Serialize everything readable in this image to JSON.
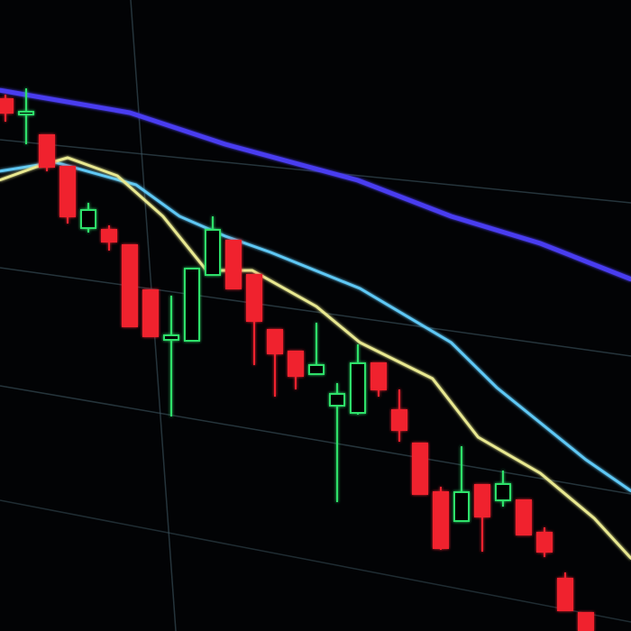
{
  "chart_data": {
    "type": "candlestick",
    "title": "",
    "xlabel": "",
    "ylabel": "",
    "grid": true,
    "legend": "none",
    "colors": {
      "up": "#2fe06a",
      "down": "#f0202e",
      "background": "#020305",
      "grid": "#5a7a8a"
    },
    "candles": [
      {
        "open": 59.0,
        "close": 57.5,
        "high": 59.5,
        "low": 56.5
      },
      {
        "open": 57.3,
        "close": 57.6,
        "high": 60.2,
        "low": 54.0
      },
      {
        "open": 55.0,
        "close": 51.5,
        "high": 55.0,
        "low": 51.0
      },
      {
        "open": 51.5,
        "close": 46.0,
        "high": 51.5,
        "low": 45.2
      },
      {
        "open": 44.7,
        "close": 46.7,
        "high": 47.5,
        "low": 44.2
      },
      {
        "open": 44.5,
        "close": 43.2,
        "high": 45.0,
        "low": 42.2
      },
      {
        "open": 42.8,
        "close": 33.8,
        "high": 42.8,
        "low": 33.8
      },
      {
        "open": 37.8,
        "close": 32.7,
        "high": 37.8,
        "low": 32.7
      },
      {
        "open": 32.3,
        "close": 32.8,
        "high": 37.2,
        "low": 23.8
      },
      {
        "open": 32.2,
        "close": 40.2,
        "high": 40.2,
        "low": 32.2
      },
      {
        "open": 39.5,
        "close": 44.5,
        "high": 46.0,
        "low": 39.5
      },
      {
        "open": 43.3,
        "close": 38.0,
        "high": 43.3,
        "low": 38.0
      },
      {
        "open": 39.5,
        "close": 34.4,
        "high": 39.5,
        "low": 29.5
      },
      {
        "open": 33.4,
        "close": 30.8,
        "high": 33.4,
        "low": 26.0
      },
      {
        "open": 31.0,
        "close": 28.3,
        "high": 31.0,
        "low": 26.8
      },
      {
        "open": 28.5,
        "close": 29.5,
        "high": 34.2,
        "low": 28.5
      },
      {
        "open": 25.0,
        "close": 26.3,
        "high": 27.5,
        "low": 14.3
      },
      {
        "open": 24.2,
        "close": 29.7,
        "high": 31.8,
        "low": 24.0
      },
      {
        "open": 29.7,
        "close": 26.8,
        "high": 29.7,
        "low": 26.0
      },
      {
        "open": 24.5,
        "close": 22.3,
        "high": 26.8,
        "low": 21.0
      },
      {
        "open": 20.8,
        "close": 15.2,
        "high": 20.8,
        "low": 15.2
      },
      {
        "open": 15.4,
        "close": 9.2,
        "high": 16.0,
        "low": 9.0
      },
      {
        "open": 12.2,
        "close": 15.4,
        "high": 20.5,
        "low": 12.2
      },
      {
        "open": 16.2,
        "close": 12.7,
        "high": 16.2,
        "low": 8.8
      },
      {
        "open": 14.5,
        "close": 16.3,
        "high": 17.8,
        "low": 13.8
      },
      {
        "open": 14.5,
        "close": 10.7,
        "high": 14.5,
        "low": 10.7
      },
      {
        "open": 10.9,
        "close": 8.8,
        "high": 11.5,
        "low": 8.2
      },
      {
        "open": 5.8,
        "close": 2.3,
        "high": 6.5,
        "low": 2.3
      },
      {
        "open": 2.0,
        "close": 0.0,
        "high": 2.0,
        "low": 0.0
      }
    ],
    "moving_averages": [
      {
        "color": "#4a3cf0",
        "points": [
          [
            -0.3,
            60
          ],
          [
            6,
            57.5
          ],
          [
            10.6,
            54
          ],
          [
            17,
            50
          ],
          [
            21.5,
            46
          ],
          [
            25.8,
            43
          ],
          [
            30.2,
            39
          ]
        ]
      },
      {
        "color": "#5ec8f5",
        "points": [
          [
            -0.3,
            51
          ],
          [
            2.4,
            52
          ],
          [
            6.3,
            49.5
          ],
          [
            8.4,
            46
          ],
          [
            10.6,
            43.8
          ],
          [
            12.8,
            42
          ],
          [
            17.1,
            38
          ],
          [
            21.5,
            32
          ],
          [
            23.7,
            27
          ],
          [
            28,
            19
          ],
          [
            30.2,
            15.5
          ]
        ]
      },
      {
        "color": "#e8e890",
        "points": [
          [
            -0.3,
            50
          ],
          [
            1.5,
            51.5
          ],
          [
            3,
            52.5
          ],
          [
            5.4,
            50.5
          ],
          [
            7.6,
            46
          ],
          [
            9.7,
            40
          ],
          [
            11.9,
            40
          ],
          [
            15,
            36
          ],
          [
            17.1,
            32
          ],
          [
            20.6,
            28
          ],
          [
            22.8,
            21.5
          ],
          [
            25.8,
            17.5
          ],
          [
            28.4,
            12.5
          ],
          [
            30.2,
            8
          ]
        ]
      }
    ]
  }
}
